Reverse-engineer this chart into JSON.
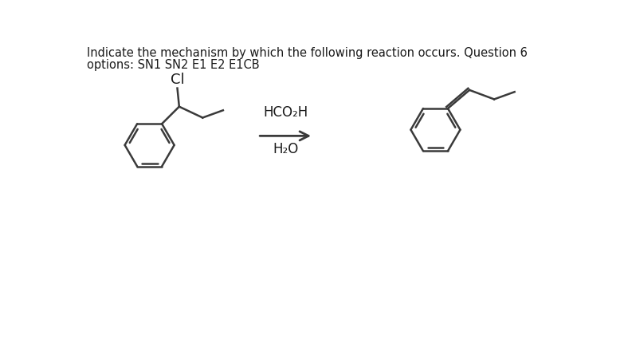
{
  "title_line1": "Indicate the mechanism by which the following reaction occurs. Question 6",
  "title_line2": "options: SN1 SN2 E1 E2 E1CB",
  "reagent_line1": "HCO₂H",
  "reagent_line2": "H₂O",
  "bg_color": "#ffffff",
  "line_color": "#3a3a3a",
  "text_color": "#1a1a1a",
  "title_fontsize": 10.5,
  "options_fontsize": 10.5,
  "chem_fontsize": 12,
  "cl_fontsize": 13,
  "fig_width": 7.88,
  "fig_height": 4.25
}
